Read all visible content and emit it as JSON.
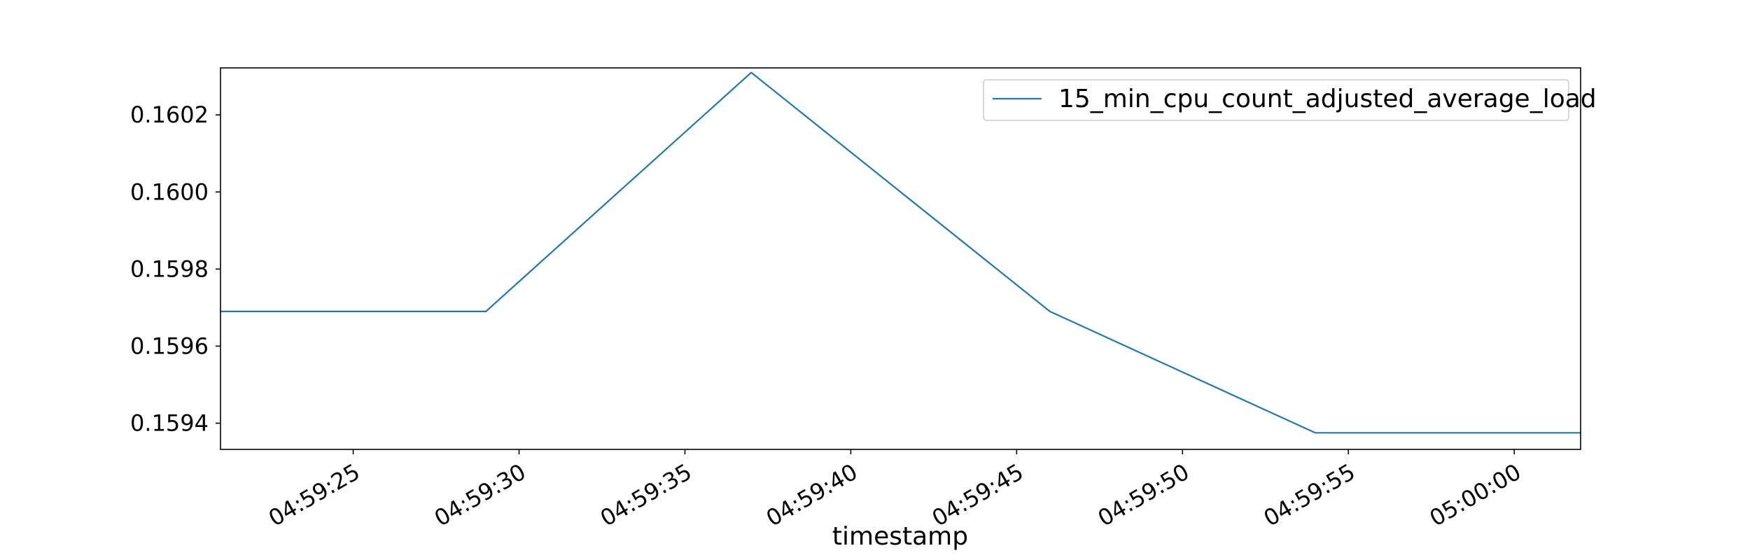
{
  "chart_data": {
    "type": "line",
    "title": "",
    "xlabel": "timestamp",
    "ylabel": "",
    "x_type": "time",
    "x_range": [
      "04:59:21",
      "05:00:02"
    ],
    "ylim": [
      0.159332,
      0.160322
    ],
    "x_ticks": [
      "04:59:25",
      "04:59:30",
      "04:59:35",
      "04:59:40",
      "04:59:45",
      "04:59:50",
      "04:59:55",
      "05:00:00"
    ],
    "y_ticks": [
      0.1594,
      0.1596,
      0.1598,
      0.16,
      0.1602
    ],
    "y_tick_labels": [
      "0.1594",
      "0.1596",
      "0.1598",
      "0.1600",
      "0.1602"
    ],
    "grid": false,
    "legend_position": "top-right",
    "series": [
      {
        "name": "15_min_cpu_count_adjusted_average_load",
        "color": "#1f77b4",
        "points": [
          {
            "x": "04:59:21",
            "y": 0.15969
          },
          {
            "x": "04:59:29",
            "y": 0.15969
          },
          {
            "x": "04:59:37",
            "y": 0.16031
          },
          {
            "x": "04:59:46",
            "y": 0.15969
          },
          {
            "x": "04:59:54",
            "y": 0.159375
          },
          {
            "x": "05:00:02",
            "y": 0.159375
          }
        ]
      }
    ]
  }
}
